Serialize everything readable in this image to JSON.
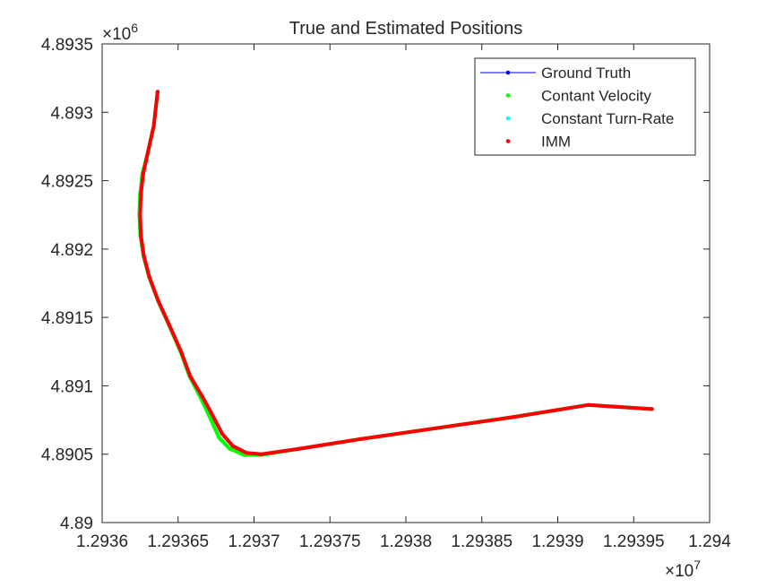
{
  "chart_data": {
    "type": "line",
    "title": "True and Estimated Positions",
    "xlabel": "",
    "ylabel": "",
    "x_exponent_label": "×10",
    "x_exponent_power": "7",
    "y_exponent_label": "×10",
    "y_exponent_power": "6",
    "xlim": [
      12936000,
      12940000
    ],
    "ylim": [
      4890000,
      4893500
    ],
    "x_ticks": [
      12936000,
      12936500,
      12937000,
      12937500,
      12938000,
      12938500,
      12939000,
      12939500,
      12940000
    ],
    "x_tick_labels": [
      "1.2936",
      "1.29365",
      "1.2937",
      "1.29375",
      "1.2938",
      "1.29385",
      "1.2939",
      "1.29395",
      "1.294"
    ],
    "y_ticks": [
      4890000,
      4890500,
      4891000,
      4891500,
      4892000,
      4892500,
      4893000,
      4893500
    ],
    "y_tick_labels": [
      "4.89",
      "4.8905",
      "4.891",
      "4.8915",
      "4.892",
      "4.8925",
      "4.893",
      "4.8935"
    ],
    "grid": false,
    "legend_position": "top-right",
    "series": [
      {
        "name": "Ground Truth",
        "color": "#0000ff",
        "style": "line-with-dots",
        "x": [
          12936365,
          12936340,
          12936300,
          12936270,
          12936255,
          12936250,
          12936255,
          12936275,
          12936310,
          12936370,
          12936440,
          12936520,
          12936580,
          12936660,
          12936720,
          12936790,
          12936860,
          12936950,
          12937050,
          12937300,
          12937700,
          12938200,
          12938700,
          12939200,
          12939620
        ],
        "y": [
          4893150,
          4892900,
          4892700,
          4892550,
          4892400,
          4892250,
          4892100,
          4891950,
          4891800,
          4891620,
          4891450,
          4891250,
          4891070,
          4890920,
          4890800,
          4890650,
          4890560,
          4890510,
          4890500,
          4890540,
          4890610,
          4890690,
          4890770,
          4890860,
          4890830
        ]
      },
      {
        "name": "Contant Velocity",
        "color": "#00ff00",
        "style": "dots",
        "x": [
          12936365,
          12936340,
          12936300,
          12936265,
          12936250,
          12936245,
          12936252,
          12936272,
          12936308,
          12936368,
          12936438,
          12936516,
          12936575,
          12936650,
          12936705,
          12936770,
          12936840,
          12936935,
          12937050,
          12937300,
          12937700,
          12938200,
          12938700,
          12939200,
          12939620
        ],
        "y": [
          4893150,
          4892900,
          4892700,
          4892550,
          4892400,
          4892250,
          4892100,
          4891950,
          4891800,
          4891620,
          4891450,
          4891250,
          4891070,
          4890910,
          4890780,
          4890620,
          4890540,
          4890495,
          4890495,
          4890540,
          4890610,
          4890690,
          4890770,
          4890860,
          4890830
        ]
      },
      {
        "name": "Constant Turn-Rate",
        "color": "#00ffff",
        "style": "dots",
        "x": [
          12936365,
          12936340,
          12936300,
          12936270,
          12936255,
          12936250,
          12936255,
          12936275,
          12936310,
          12936370,
          12936440,
          12936520,
          12936580,
          12936660,
          12936720,
          12936790,
          12936860,
          12936950,
          12937050,
          12937300,
          12937700,
          12938200,
          12938700,
          12939200,
          12939620
        ],
        "y": [
          4893150,
          4892900,
          4892700,
          4892550,
          4892400,
          4892250,
          4892100,
          4891950,
          4891800,
          4891620,
          4891450,
          4891250,
          4891070,
          4890920,
          4890800,
          4890650,
          4890560,
          4890510,
          4890500,
          4890540,
          4890610,
          4890690,
          4890770,
          4890860,
          4890830
        ]
      },
      {
        "name": "IMM",
        "color": "#ff0000",
        "style": "dots",
        "x": [
          12936365,
          12936340,
          12936300,
          12936270,
          12936255,
          12936250,
          12936255,
          12936275,
          12936310,
          12936370,
          12936440,
          12936520,
          12936580,
          12936660,
          12936720,
          12936790,
          12936860,
          12936950,
          12937050,
          12937300,
          12937700,
          12938200,
          12938700,
          12939200,
          12939620
        ],
        "y": [
          4893150,
          4892900,
          4892700,
          4892550,
          4892400,
          4892250,
          4892100,
          4891950,
          4891800,
          4891620,
          4891450,
          4891250,
          4891070,
          4890920,
          4890800,
          4890650,
          4890560,
          4890510,
          4890500,
          4890540,
          4890610,
          4890690,
          4890770,
          4890860,
          4890830
        ]
      }
    ]
  }
}
